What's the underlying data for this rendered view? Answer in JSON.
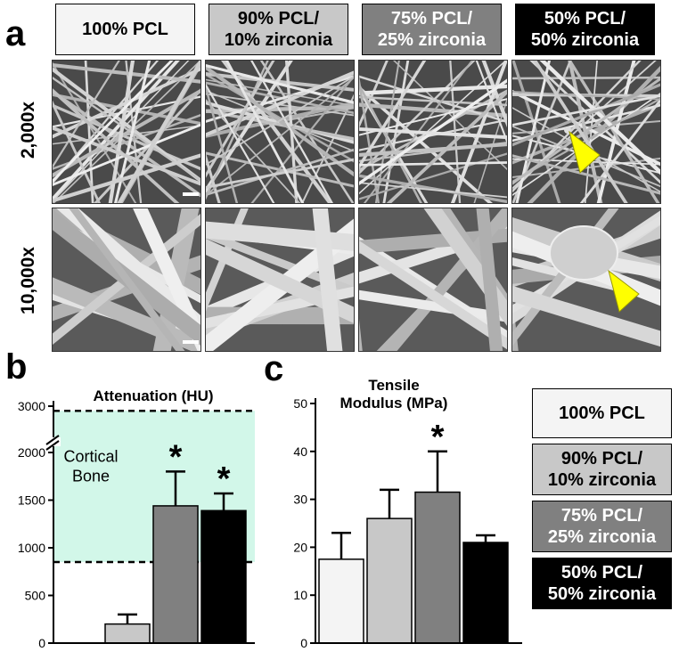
{
  "panels": {
    "a": "a",
    "b": "b",
    "c": "c"
  },
  "groups": [
    {
      "label": "100% PCL",
      "fill": "#f4f4f4",
      "text": "#000000"
    },
    {
      "label": "90% PCL/\n10% zirconia",
      "fill": "#c8c8c8",
      "text": "#000000"
    },
    {
      "label": "75% PCL/\n25% zirconia",
      "fill": "#808080",
      "text": "#ffffff"
    },
    {
      "label": "50% PCL/\n50% zirconia",
      "fill": "#000000",
      "text": "#ffffff"
    }
  ],
  "row_labels": [
    "2,000x",
    "10,000x"
  ],
  "arrow_color": "#ffff00",
  "chart_data": [
    {
      "type": "bar",
      "title": "Attenuation (HU)",
      "categories": [
        "100% PCL",
        "90% PCL/10% zirconia",
        "75% PCL/25% zirconia",
        "50% PCL/50% zirconia"
      ],
      "values": [
        0,
        200,
        1440,
        1390
      ],
      "errors": [
        0,
        100,
        360,
        180
      ],
      "significance": [
        "",
        "",
        "*",
        "*"
      ],
      "yticks": [
        0,
        500,
        1000,
        1500,
        2000,
        3000
      ],
      "ylim": [
        0,
        3000
      ],
      "axis_break": true,
      "region": {
        "label": "Cortical\nBone",
        "from": 850,
        "to": 2900,
        "color": "#d2f7e9"
      }
    },
    {
      "type": "bar",
      "title": "Tensile\nModulus (MPa)",
      "categories": [
        "100% PCL",
        "90% PCL/10% zirconia",
        "75% PCL/25% zirconia",
        "50% PCL/50% zirconia"
      ],
      "values": [
        17.5,
        26,
        31.5,
        21
      ],
      "errors": [
        5.5,
        6,
        8.5,
        1.5
      ],
      "significance": [
        "",
        "",
        "*",
        ""
      ],
      "yticks": [
        0,
        10,
        20,
        30,
        40,
        50
      ],
      "ylim": [
        0,
        50
      ]
    }
  ]
}
